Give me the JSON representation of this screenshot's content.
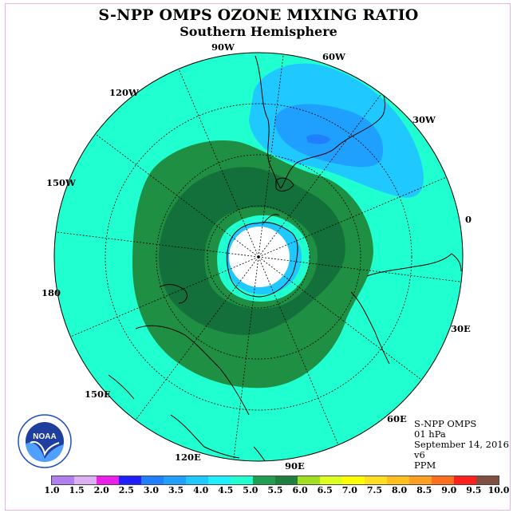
{
  "title": "S-NPP OMPS OZONE MIXING RATIO",
  "subtitle": "Southern Hemisphere",
  "info": {
    "instrument": "S-NPP OMPS",
    "level": "01 hPa",
    "date": "September 14, 2016",
    "version": "v6",
    "units": "PPM"
  },
  "logo_text": "NOAA",
  "longitude_labels": [
    "90W",
    "60W",
    "30W",
    "0",
    "30E",
    "60E",
    "90E",
    "120E",
    "150E",
    "180",
    "150W",
    "120W"
  ],
  "colorbar": {
    "ticks": [
      "1.0",
      "1.5",
      "2.0",
      "2.5",
      "3.0",
      "3.5",
      "4.0",
      "4.5",
      "5.0",
      "5.5",
      "6.0",
      "6.5",
      "7.0",
      "7.5",
      "8.0",
      "8.5",
      "9.0",
      "9.5",
      "10.0"
    ],
    "colors": [
      "#b27ff0",
      "#dcb0f2",
      "#ee1fee",
      "#1f1fff",
      "#1f7fff",
      "#1fa0ff",
      "#1fc8ff",
      "#1ff0ff",
      "#1fffd0",
      "#1f9f4f",
      "#1f7f3f",
      "#9fdf1f",
      "#dfff1f",
      "#ffff00",
      "#ffdf1f",
      "#ffbf1f",
      "#ff9f1f",
      "#ff6f1f",
      "#ff1f1f",
      "#7f4f3f"
    ]
  },
  "map_colors": {
    "background": "#1fffd0",
    "band_55": "#1f8f44",
    "band_60": "#14703a",
    "light_blue": "#1fc8ff",
    "mid_blue": "#1fa0ff",
    "dark_blue": "#1f7fff",
    "pole_blank": "#ffffff"
  }
}
